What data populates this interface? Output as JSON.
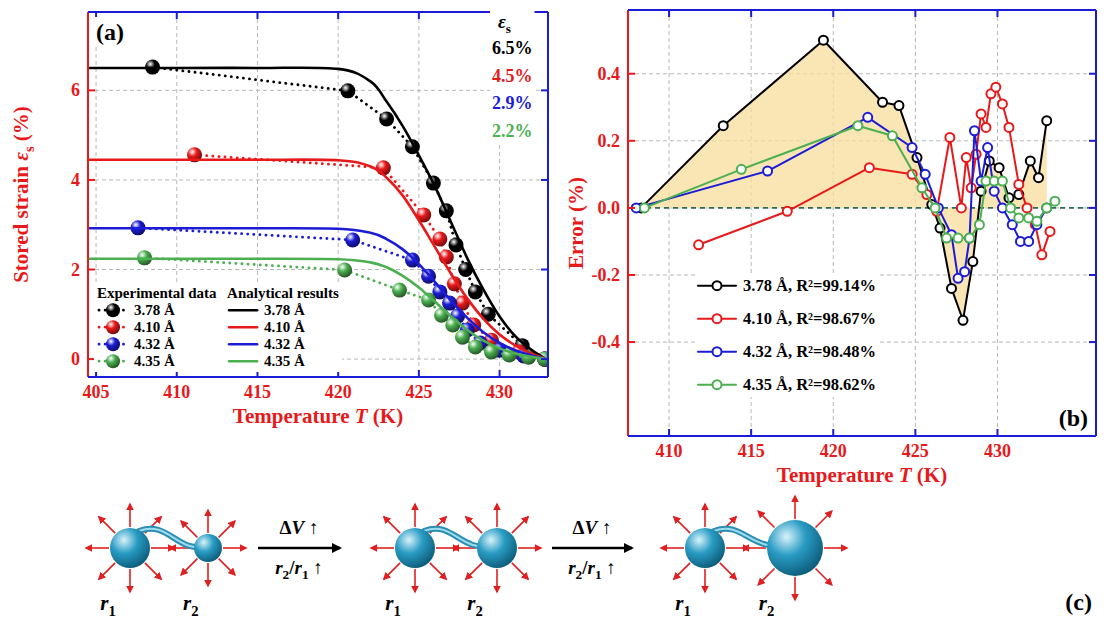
{
  "chart_data": [
    {
      "type": "line",
      "panel_label": "(a)",
      "x_label": [
        {
          "t": "Temperature "
        },
        {
          "t": "T",
          "style": "italic"
        },
        {
          "t": " (K)"
        }
      ],
      "y_label": [
        {
          "t": "Stored strain "
        },
        {
          "t": "ε",
          "style": "italic"
        },
        {
          "t": "s",
          "style": "sub"
        },
        {
          "t": " (%)"
        }
      ],
      "xlim": [
        404.5,
        433
      ],
      "xticks": [
        405,
        410,
        415,
        420,
        425,
        430
      ],
      "ylim": [
        -0.4,
        7.75
      ],
      "yticks": [
        0,
        2,
        4,
        6
      ],
      "grid": true,
      "legend": "lower left",
      "legend_headers": [
        "Experimental data",
        "Analytical results"
      ],
      "annotation": {
        "title": [
          {
            "t": "ε",
            "style": "italic"
          },
          {
            "t": "s",
            "style": "sub"
          }
        ],
        "items": [
          {
            "text": "6.5%",
            "color": "#000000"
          },
          {
            "text": "4.5%",
            "color": "#e8191b"
          },
          {
            "text": "2.9%",
            "color": "#1c1cd6"
          },
          {
            "text": "2.2%",
            "color": "#4caf50"
          }
        ]
      },
      "series": [
        {
          "name": "3.78 Å",
          "type": "scatter",
          "marker": "sphere",
          "line_style": "dotted",
          "color": "#000000",
          "x": [
            408.5,
            420.6,
            423.0,
            424.6,
            425.9,
            426.7,
            427.3,
            427.9,
            428.5,
            429.3,
            431.4,
            432.8
          ],
          "values": [
            6.52,
            5.99,
            5.36,
            4.74,
            3.93,
            3.31,
            2.55,
            2.0,
            1.5,
            1.0,
            0.3,
            0.0
          ]
        },
        {
          "name": "4.10 Å",
          "type": "scatter",
          "marker": "sphere",
          "line_style": "dotted",
          "color": "#e8191b",
          "x": [
            411.1,
            422.8,
            425.3,
            426.3,
            426.7,
            427.2,
            427.7,
            428.4,
            429.5,
            431.2,
            432.8
          ],
          "values": [
            4.56,
            4.27,
            3.22,
            2.68,
            2.28,
            1.68,
            1.25,
            0.76,
            0.42,
            0.16,
            0.0
          ]
        },
        {
          "name": "4.32 Å",
          "type": "scatter",
          "marker": "sphere",
          "line_style": "dotted",
          "color": "#1c1cd6",
          "x": [
            407.6,
            420.9,
            424.6,
            425.6,
            426.3,
            426.9,
            427.4,
            428.0,
            428.8,
            430.0,
            431.5,
            432.8
          ],
          "values": [
            2.93,
            2.66,
            2.21,
            1.85,
            1.5,
            1.25,
            0.96,
            0.65,
            0.36,
            0.2,
            0.07,
            0.0
          ]
        },
        {
          "name": "4.35 Å",
          "type": "scatter",
          "marker": "sphere",
          "line_style": "dotted",
          "color": "#4caf50",
          "x": [
            408.0,
            420.4,
            423.8,
            425.6,
            426.4,
            427.1,
            427.7,
            428.5,
            429.5,
            430.6,
            431.8,
            432.8
          ],
          "values": [
            2.26,
            1.99,
            1.54,
            1.32,
            0.98,
            0.76,
            0.49,
            0.27,
            0.16,
            0.09,
            0.04,
            0.0
          ]
        },
        {
          "name": "3.78 Å",
          "type": "line",
          "line_style": "solid",
          "color": "#000000",
          "x": [
            404.6,
            410,
            415,
            420,
            422,
            423,
            424,
            425,
            426,
            427,
            428,
            429,
            430,
            431,
            432,
            432.8
          ],
          "values": [
            6.5,
            6.5,
            6.5,
            6.48,
            6.2,
            5.75,
            5.2,
            4.55,
            3.85,
            3.05,
            2.25,
            1.55,
            0.95,
            0.5,
            0.2,
            0.02
          ]
        },
        {
          "name": "4.10 Å",
          "type": "line",
          "line_style": "solid",
          "color": "#e8191b",
          "x": [
            404.6,
            410,
            415,
            420,
            422,
            423,
            424,
            425,
            426,
            427,
            428,
            429,
            430,
            431,
            432,
            432.8
          ],
          "values": [
            4.45,
            4.45,
            4.45,
            4.44,
            4.3,
            4.05,
            3.65,
            3.1,
            2.5,
            1.9,
            1.35,
            0.9,
            0.55,
            0.3,
            0.12,
            0.02
          ]
        },
        {
          "name": "4.32 Å",
          "type": "line",
          "line_style": "solid",
          "color": "#1c1cd6",
          "x": [
            404.6,
            410,
            415,
            420,
            422,
            423,
            424,
            425,
            426,
            427,
            428,
            429,
            430,
            431,
            432,
            432.8
          ],
          "values": [
            2.92,
            2.92,
            2.92,
            2.91,
            2.82,
            2.68,
            2.45,
            2.12,
            1.72,
            1.3,
            0.92,
            0.6,
            0.36,
            0.19,
            0.08,
            0.01
          ]
        },
        {
          "name": "4.35 Å",
          "type": "line",
          "line_style": "solid",
          "color": "#4caf50",
          "x": [
            404.6,
            410,
            415,
            420,
            422,
            423,
            424,
            425,
            426,
            427,
            428,
            429,
            430,
            431,
            432,
            432.8
          ],
          "values": [
            2.24,
            2.24,
            2.24,
            2.23,
            2.16,
            2.05,
            1.86,
            1.6,
            1.28,
            0.95,
            0.65,
            0.41,
            0.24,
            0.12,
            0.05,
            0.01
          ]
        }
      ]
    },
    {
      "type": "line",
      "panel_label": "(b)",
      "x_label": [
        {
          "t": "Temperature "
        },
        {
          "t": "T",
          "style": "italic"
        },
        {
          "t": " (K)"
        }
      ],
      "y_label": [
        {
          "t": "Error (%)"
        }
      ],
      "xlim": [
        407.5,
        436
      ],
      "xticks": [
        410,
        415,
        420,
        425,
        430
      ],
      "ylim": [
        -0.68,
        0.59
      ],
      "yticks": [
        -0.4,
        -0.2,
        {
          "value": 0,
          "label": "0.0"
        },
        0.2,
        0.4
      ],
      "grid": true,
      "legend": "lower left",
      "reference_line": 0,
      "series": [
        {
          "name": "3.78 Å, R²=99.14%",
          "type": "area",
          "marker": "circle",
          "line_style": "solid",
          "color": "#000000",
          "x": [
            408.3,
            413.3,
            419.4,
            423.0,
            424.0,
            425.1,
            426.0,
            426.5,
            427.2,
            427.9,
            428.5,
            429.0,
            429.5,
            430.1,
            430.7,
            431.3,
            432.0,
            432.5,
            433.0
          ],
          "values": [
            0,
            0.245,
            0.5,
            0.315,
            0.305,
            0.15,
            0.01,
            -0.06,
            -0.24,
            -0.335,
            -0.16,
            0.05,
            0.14,
            0.12,
            0.03,
            0.04,
            0.14,
            0.09,
            0.26
          ]
        },
        {
          "name": "4.10 Å, R²=98.67%",
          "type": "line",
          "marker": "circle",
          "line_style": "solid",
          "color": "#e8191b",
          "x": [
            411.8,
            417.2,
            422.2,
            424.8,
            425.7,
            426.3,
            427.1,
            427.8,
            428.1,
            428.4,
            428.7,
            429.0,
            429.3,
            429.6,
            429.9,
            430.3,
            430.7,
            431.3,
            431.8,
            432.3,
            432.7,
            433.2
          ],
          "values": [
            -0.11,
            -0.01,
            0.12,
            0.1,
            0.04,
            -0.01,
            0.21,
            0.0,
            0.15,
            0.06,
            0.16,
            0.28,
            0.24,
            0.34,
            0.36,
            0.31,
            0.24,
            0.07,
            0.0,
            -0.05,
            -0.14,
            -0.07
          ]
        },
        {
          "name": "4.32 Å, R²=98.48%",
          "type": "line",
          "marker": "circle",
          "line_style": "solid",
          "color": "#1c1cd6",
          "x": [
            408.0,
            416.0,
            422.1,
            424.8,
            425.6,
            426.4,
            427.2,
            427.6,
            428.0,
            428.3,
            428.6,
            429.0,
            429.4,
            429.8,
            430.3,
            430.9,
            431.4,
            431.9,
            432.4,
            433.0
          ],
          "values": [
            0,
            0.11,
            0.27,
            0.18,
            0.1,
            0,
            -0.08,
            -0.21,
            -0.19,
            -0.09,
            0.23,
            0.08,
            0.18,
            0.05,
            0,
            -0.05,
            -0.1,
            -0.1,
            -0.05,
            0
          ]
        },
        {
          "name": "4.35 Å, R²=98.62%",
          "type": "line",
          "marker": "circle",
          "line_style": "solid",
          "color": "#4caf50",
          "x": [
            408.5,
            414.4,
            421.5,
            423.6,
            425.4,
            426.2,
            426.9,
            427.6,
            428.3,
            428.9,
            429.3,
            429.8,
            430.3,
            430.8,
            431.3,
            431.9,
            432.4,
            433.0,
            433.5
          ],
          "values": [
            0,
            0.115,
            0.245,
            0.215,
            0.06,
            0,
            -0.09,
            -0.09,
            -0.09,
            -0.05,
            0.08,
            0.08,
            0.08,
            0,
            -0.03,
            -0.03,
            -0.04,
            0,
            0.02
          ]
        }
      ]
    }
  ],
  "diagram": {
    "panel_label": "(c)",
    "stages": [
      {
        "labels": [
          [
            {
              "t": "r",
              "style": "italic"
            },
            {
              "t": "1",
              "style": "sub"
            }
          ],
          [
            {
              "t": "r",
              "style": "italic"
            },
            {
              "t": "2",
              "style": "sub"
            }
          ]
        ]
      },
      {
        "labels": [
          [
            {
              "t": "r",
              "style": "italic"
            },
            {
              "t": "1",
              "style": "sub"
            }
          ],
          [
            {
              "t": "r",
              "style": "italic"
            },
            {
              "t": "2",
              "style": "sub"
            }
          ]
        ]
      },
      {
        "labels": [
          [
            {
              "t": "r",
              "style": "italic"
            },
            {
              "t": "1",
              "style": "sub"
            }
          ],
          [
            {
              "t": "r",
              "style": "italic"
            },
            {
              "t": "2",
              "style": "sub"
            }
          ]
        ]
      }
    ],
    "transitions": [
      {
        "top": [
          {
            "t": "Δ"
          },
          {
            "t": "V",
            "style": "italic"
          },
          {
            "t": " ↑"
          }
        ],
        "bottom": [
          {
            "t": "r",
            "style": "italic"
          },
          {
            "t": "2",
            "style": "sub"
          },
          {
            "t": "/"
          },
          {
            "t": "r",
            "style": "italic"
          },
          {
            "t": "1",
            "style": "sub"
          },
          {
            "t": " ↑"
          }
        ]
      },
      {
        "top": [
          {
            "t": "Δ"
          },
          {
            "t": "V",
            "style": "italic"
          },
          {
            "t": " ↑"
          }
        ],
        "bottom": [
          {
            "t": "r",
            "style": "italic"
          },
          {
            "t": "2",
            "style": "sub"
          },
          {
            "t": "/"
          },
          {
            "t": "r",
            "style": "italic"
          },
          {
            "t": "1",
            "style": "sub"
          },
          {
            "t": " ↑"
          }
        ]
      }
    ]
  }
}
